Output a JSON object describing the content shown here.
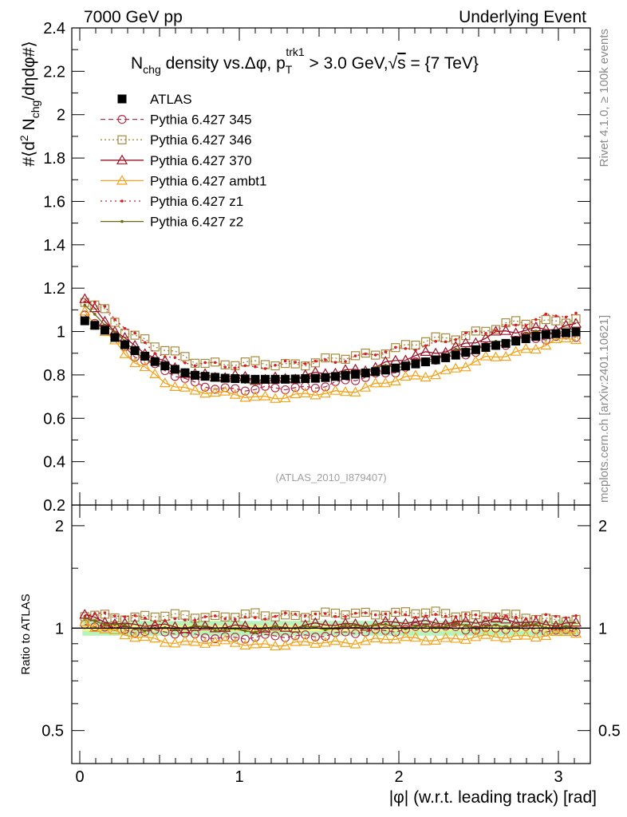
{
  "header": {
    "left": "7000 GeV pp",
    "right": "Underlying Event",
    "side_top": "Rivet 4.1.0, ≥ 100k events",
    "side_bottom": "mcplots.cern.ch [arXiv:2401.10621]"
  },
  "colors": {
    "atlas": "#000000",
    "p345": "#b0324a",
    "p346": "#a68a3c",
    "p370": "#9c1025",
    "ambt1": "#f4a21a",
    "z1": "#d42020",
    "z2": "#6e6a10",
    "band_inner": "#f3f58a",
    "band_outer": "#9ef0a4"
  },
  "chart_data": [
    {
      "type": "line",
      "title": "N_chg density vs.Δφ, p_T^trk1 > 3.0 GeV, √s = {7 TeV}",
      "title_parts": {
        "t1": "N",
        "t1sub": "chg",
        "t2": " density vs.Δφ, p",
        "t2sub": "T",
        "t2sup": "trk1",
        "t3": " > 3.0 GeV,",
        "t4": "√",
        "t5": "s",
        "t6": " = {7 TeV}"
      },
      "ylabel": "#⟨d² N_chg/dηdφ#⟩",
      "ylabel_parts": {
        "a": "#⟨d",
        "sup": "2",
        "b": " N",
        "sub": "chg",
        "c": "/dηdφ#⟩"
      },
      "xlim": [
        -0.05,
        3.2
      ],
      "ylim": [
        0.2,
        2.4
      ],
      "yticks": [
        0.2,
        0.4,
        0.6,
        0.8,
        1.0,
        1.2,
        1.4,
        1.6,
        1.8,
        2.0,
        2.2,
        2.4
      ],
      "ytick_labels": [
        "0.2",
        "0.4",
        "0.6",
        "0.8",
        "1",
        "1.2",
        "1.4",
        "1.6",
        "1.8",
        "2",
        "2.2",
        "2.4"
      ],
      "reference_label": "(ATLAS_2010_I879407)",
      "legend": [
        "ATLAS",
        "Pythia 6.427 345",
        "Pythia 6.427 346",
        "Pythia 6.427 370",
        "Pythia 6.427 ambt1",
        "Pythia 6.427 z1",
        "Pythia 6.427 z2"
      ],
      "series": [
        {
          "name": "ATLAS",
          "anchors": [
            [
              0,
              1.06
            ],
            [
              0.15,
              1.01
            ],
            [
              0.3,
              0.93
            ],
            [
              0.5,
              0.85
            ],
            [
              0.7,
              0.8
            ],
            [
              0.9,
              0.785
            ],
            [
              1.1,
              0.78
            ],
            [
              1.3,
              0.78
            ],
            [
              1.5,
              0.785
            ],
            [
              1.7,
              0.8
            ],
            [
              1.9,
              0.82
            ],
            [
              2.1,
              0.85
            ],
            [
              2.3,
              0.88
            ],
            [
              2.5,
              0.92
            ],
            [
              2.7,
              0.95
            ],
            [
              2.9,
              0.985
            ],
            [
              3.14,
              1.0
            ]
          ]
        },
        {
          "name": "Pythia 6.427 345",
          "anchors": [
            [
              0,
              1.07
            ],
            [
              0.15,
              1.02
            ],
            [
              0.3,
              0.92
            ],
            [
              0.5,
              0.83
            ],
            [
              0.7,
              0.76
            ],
            [
              0.9,
              0.74
            ],
            [
              1.1,
              0.73
            ],
            [
              1.3,
              0.74
            ],
            [
              1.5,
              0.75
            ],
            [
              1.7,
              0.77
            ],
            [
              1.9,
              0.81
            ],
            [
              2.1,
              0.85
            ],
            [
              2.3,
              0.88
            ],
            [
              2.5,
              0.92
            ],
            [
              2.7,
              0.95
            ],
            [
              2.9,
              0.97
            ],
            [
              3.14,
              0.99
            ]
          ]
        },
        {
          "name": "Pythia 6.427 346",
          "anchors": [
            [
              0,
              1.15
            ],
            [
              0.15,
              1.1
            ],
            [
              0.3,
              1.0
            ],
            [
              0.5,
              0.92
            ],
            [
              0.7,
              0.87
            ],
            [
              0.9,
              0.85
            ],
            [
              1.1,
              0.85
            ],
            [
              1.3,
              0.85
            ],
            [
              1.5,
              0.86
            ],
            [
              1.7,
              0.88
            ],
            [
              1.9,
              0.91
            ],
            [
              2.1,
              0.94
            ],
            [
              2.3,
              0.97
            ],
            [
              2.5,
              1.0
            ],
            [
              2.7,
              1.03
            ],
            [
              2.9,
              1.05
            ],
            [
              3.14,
              1.06
            ]
          ]
        },
        {
          "name": "Pythia 6.427 370",
          "anchors": [
            [
              0,
              1.16
            ],
            [
              0.15,
              1.07
            ],
            [
              0.3,
              0.95
            ],
            [
              0.5,
              0.86
            ],
            [
              0.7,
              0.81
            ],
            [
              0.9,
              0.79
            ],
            [
              1.1,
              0.78
            ],
            [
              1.3,
              0.79
            ],
            [
              1.5,
              0.8
            ],
            [
              1.7,
              0.82
            ],
            [
              1.9,
              0.85
            ],
            [
              2.1,
              0.88
            ],
            [
              2.3,
              0.92
            ],
            [
              2.5,
              0.96
            ],
            [
              2.7,
              1.0
            ],
            [
              2.9,
              1.02
            ],
            [
              3.14,
              1.02
            ]
          ]
        },
        {
          "name": "Pythia 6.427 ambt1",
          "anchors": [
            [
              0,
              1.12
            ],
            [
              0.15,
              1.01
            ],
            [
              0.3,
              0.88
            ],
            [
              0.5,
              0.78
            ],
            [
              0.7,
              0.73
            ],
            [
              0.9,
              0.71
            ],
            [
              1.1,
              0.7
            ],
            [
              1.3,
              0.7
            ],
            [
              1.5,
              0.71
            ],
            [
              1.7,
              0.73
            ],
            [
              1.9,
              0.76
            ],
            [
              2.1,
              0.79
            ],
            [
              2.3,
              0.82
            ],
            [
              2.5,
              0.86
            ],
            [
              2.7,
              0.9
            ],
            [
              2.9,
              0.94
            ],
            [
              3.14,
              0.97
            ]
          ]
        },
        {
          "name": "Pythia 6.427 z1",
          "anchors": [
            [
              0,
              1.17
            ],
            [
              0.15,
              1.11
            ],
            [
              0.3,
              1.0
            ],
            [
              0.5,
              0.9
            ],
            [
              0.7,
              0.85
            ],
            [
              0.9,
              0.84
            ],
            [
              1.1,
              0.84
            ],
            [
              1.3,
              0.85
            ],
            [
              1.5,
              0.86
            ],
            [
              1.7,
              0.88
            ],
            [
              1.9,
              0.9
            ],
            [
              2.1,
              0.93
            ],
            [
              2.3,
              0.96
            ],
            [
              2.5,
              0.99
            ],
            [
              2.7,
              1.03
            ],
            [
              2.9,
              1.06
            ],
            [
              3.14,
              1.08
            ]
          ]
        },
        {
          "name": "Pythia 6.427 z2",
          "anchors": [
            [
              0,
              1.13
            ],
            [
              0.15,
              1.04
            ],
            [
              0.3,
              0.93
            ],
            [
              0.5,
              0.85
            ],
            [
              0.7,
              0.8
            ],
            [
              0.9,
              0.78
            ],
            [
              1.1,
              0.77
            ],
            [
              1.3,
              0.78
            ],
            [
              1.5,
              0.79
            ],
            [
              1.7,
              0.81
            ],
            [
              1.9,
              0.83
            ],
            [
              2.1,
              0.86
            ],
            [
              2.3,
              0.89
            ],
            [
              2.5,
              0.93
            ],
            [
              2.7,
              0.97
            ],
            [
              2.9,
              0.99
            ],
            [
              3.14,
              1.0
            ]
          ]
        }
      ]
    },
    {
      "type": "line",
      "ylabel": "Ratio to ATLAS",
      "xlabel": "|φ| (w.r.t. leading track) [rad]",
      "xlim": [
        -0.05,
        3.2
      ],
      "ylim": [
        0.4,
        2.3
      ],
      "yscale": "log",
      "yticks": [
        0.5,
        1,
        2
      ],
      "ytick_labels": [
        "0.5",
        "1",
        "2"
      ],
      "xticks": [
        0,
        1,
        2,
        3
      ],
      "xtick_labels": [
        "0",
        "1",
        "2",
        "3"
      ],
      "band_inner_halfwidth": 0.02,
      "band_outer_halfwidth": 0.05
    }
  ]
}
